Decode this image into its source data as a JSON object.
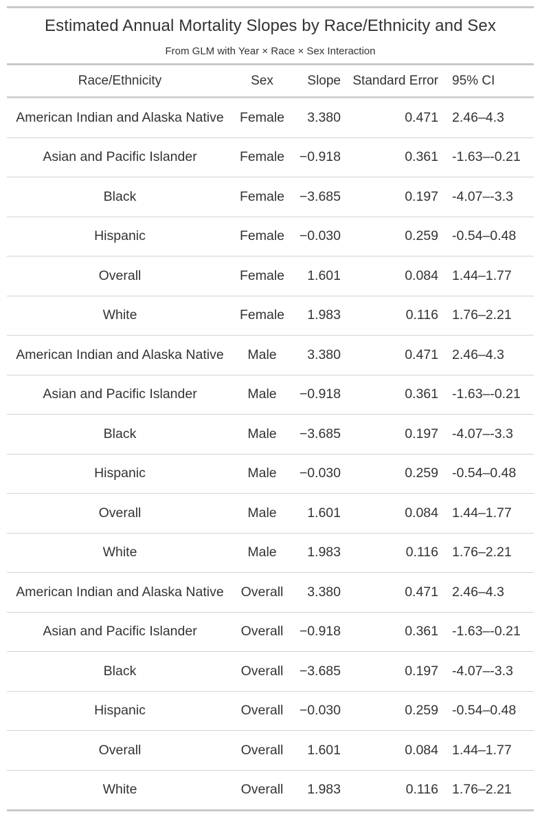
{
  "chart_data": {
    "type": "table",
    "title": "Estimated Annual Mortality Slopes by Race/Ethnicity and Sex",
    "subtitle": "From GLM with Year × Race × Sex Interaction",
    "columns": [
      "Race/Ethnicity",
      "Sex",
      "Slope",
      "Standard Error",
      "95% CI"
    ],
    "rows": [
      [
        "American Indian and Alaska Native",
        "Female",
        "3.380",
        "0.471",
        "2.46–4.3"
      ],
      [
        "Asian and Pacific Islander",
        "Female",
        "−0.918",
        "0.361",
        "-1.63–-0.21"
      ],
      [
        "Black",
        "Female",
        "−3.685",
        "0.197",
        "-4.07–-3.3"
      ],
      [
        "Hispanic",
        "Female",
        "−0.030",
        "0.259",
        "-0.54–0.48"
      ],
      [
        "Overall",
        "Female",
        "1.601",
        "0.084",
        "1.44–1.77"
      ],
      [
        "White",
        "Female",
        "1.983",
        "0.116",
        "1.76–2.21"
      ],
      [
        "American Indian and Alaska Native",
        "Male",
        "3.380",
        "0.471",
        "2.46–4.3"
      ],
      [
        "Asian and Pacific Islander",
        "Male",
        "−0.918",
        "0.361",
        "-1.63–-0.21"
      ],
      [
        "Black",
        "Male",
        "−3.685",
        "0.197",
        "-4.07–-3.3"
      ],
      [
        "Hispanic",
        "Male",
        "−0.030",
        "0.259",
        "-0.54–0.48"
      ],
      [
        "Overall",
        "Male",
        "1.601",
        "0.084",
        "1.44–1.77"
      ],
      [
        "White",
        "Male",
        "1.983",
        "0.116",
        "1.76–2.21"
      ],
      [
        "American Indian and Alaska Native",
        "Overall",
        "3.380",
        "0.471",
        "2.46–4.3"
      ],
      [
        "Asian and Pacific Islander",
        "Overall",
        "−0.918",
        "0.361",
        "-1.63–-0.21"
      ],
      [
        "Black",
        "Overall",
        "−3.685",
        "0.197",
        "-4.07–-3.3"
      ],
      [
        "Hispanic",
        "Overall",
        "−0.030",
        "0.259",
        "-0.54–0.48"
      ],
      [
        "Overall",
        "Overall",
        "1.601",
        "0.084",
        "1.44–1.77"
      ],
      [
        "White",
        "Overall",
        "1.983",
        "0.116",
        "1.76–2.21"
      ]
    ]
  },
  "colors": {
    "text": "#333333",
    "rule": "#c9c9c9",
    "row_divider": "#d3d3d3",
    "background": "#ffffff"
  }
}
